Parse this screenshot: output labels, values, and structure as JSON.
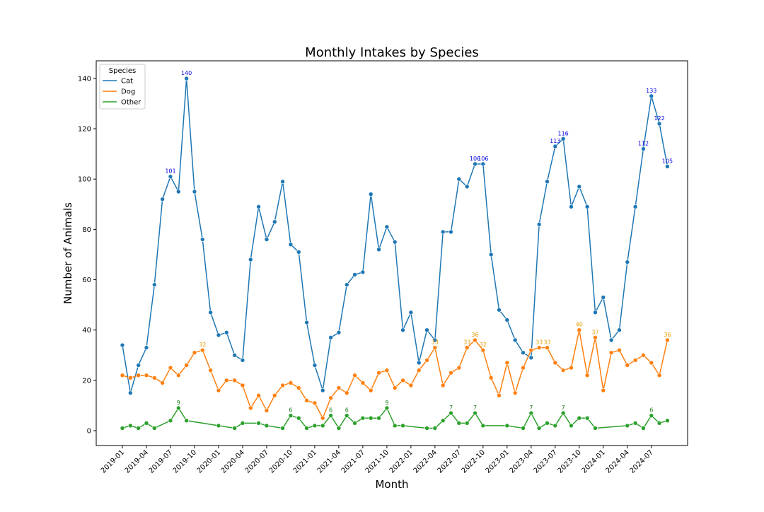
{
  "chart_data": {
    "type": "line",
    "title": "Monthly Intakes by Species",
    "x_label": "Month",
    "y_label": "Number of Animals",
    "legend_title": "Species",
    "legend": "upper left",
    "categories": [
      "2019-01",
      null,
      null,
      "2019-04",
      null,
      null,
      "2019-07",
      null,
      null,
      "2019-10",
      null,
      null,
      "2020-01",
      null,
      null,
      "2020-04",
      null,
      null,
      "2020-07",
      null,
      null,
      "2020-10",
      null,
      null,
      "2021-01",
      null,
      null,
      "2021-04",
      null,
      null,
      "2021-07",
      null,
      null,
      "2021-10",
      null,
      null,
      "2022-01",
      null,
      null,
      "2022-04",
      null,
      null,
      "2022-07",
      null,
      null,
      "2022-10",
      null,
      null,
      "2023-01",
      null,
      null,
      "2023-04",
      null,
      null,
      "2023-07",
      null,
      null,
      "2023-10",
      null,
      null,
      "2024-01",
      null,
      null,
      "2024-04",
      null,
      null,
      "2024-07",
      null,
      null
    ],
    "ylim": [
      -5.9,
      147
    ],
    "yticks": [
      0,
      20,
      40,
      60,
      80,
      100,
      120,
      140
    ],
    "series": [
      {
        "name": "Cat",
        "color": "#1f77b4",
        "label_color": "#0000dd",
        "values": [
          34,
          15,
          26,
          33,
          58,
          92,
          101,
          95,
          140,
          95,
          76,
          47,
          38,
          39,
          30,
          28,
          68,
          89,
          76,
          83,
          99,
          74,
          71,
          43,
          26,
          16,
          37,
          39,
          58,
          62,
          63,
          94,
          72,
          81,
          75,
          40,
          47,
          27,
          40,
          36,
          79,
          79,
          100,
          97,
          106,
          106,
          70,
          48,
          44,
          36,
          31,
          29,
          82,
          99,
          113,
          116,
          89,
          97,
          89,
          47,
          53,
          36,
          40,
          67,
          89,
          112,
          133,
          122,
          105
        ],
        "value_labels": [
          null,
          null,
          null,
          null,
          null,
          null,
          "101",
          null,
          "140",
          null,
          null,
          null,
          null,
          null,
          null,
          null,
          null,
          null,
          null,
          null,
          null,
          null,
          null,
          null,
          null,
          null,
          null,
          null,
          null,
          null,
          null,
          null,
          null,
          null,
          null,
          null,
          null,
          null,
          null,
          null,
          null,
          null,
          null,
          null,
          "106",
          "106",
          null,
          null,
          null,
          null,
          null,
          null,
          null,
          null,
          "113",
          "116",
          null,
          null,
          null,
          null,
          null,
          null,
          null,
          null,
          null,
          "112",
          "133",
          "122",
          "105"
        ]
      },
      {
        "name": "Dog",
        "color": "#ff7f0e",
        "label_color": "#e69a00",
        "values": [
          22,
          21,
          22,
          22,
          21,
          19,
          25,
          22,
          26,
          31,
          32,
          24,
          16,
          20,
          20,
          18,
          9,
          14,
          8,
          14,
          18,
          19,
          17,
          12,
          11,
          5,
          13,
          17,
          15,
          22,
          19,
          16,
          23,
          24,
          17,
          20,
          18,
          24,
          28,
          33,
          18,
          23,
          25,
          33,
          36,
          32,
          21,
          14,
          27,
          15,
          25,
          32,
          33,
          33,
          27,
          24,
          25,
          40,
          22,
          37,
          16,
          31,
          32,
          26,
          28,
          30,
          27,
          22,
          36
        ],
        "value_labels": [
          null,
          null,
          null,
          null,
          null,
          null,
          null,
          null,
          null,
          null,
          "32",
          null,
          null,
          null,
          null,
          null,
          null,
          null,
          null,
          null,
          null,
          null,
          null,
          null,
          null,
          null,
          null,
          null,
          null,
          null,
          null,
          null,
          null,
          null,
          null,
          null,
          null,
          null,
          null,
          "33",
          null,
          null,
          null,
          "33",
          "36",
          "32",
          null,
          null,
          null,
          null,
          null,
          null,
          "33",
          "33",
          null,
          null,
          null,
          "40",
          null,
          "37",
          null,
          null,
          null,
          null,
          null,
          null,
          null,
          null,
          "36"
        ]
      },
      {
        "name": "Other",
        "color": "#2ca02c",
        "label_color": "#1a7a1a",
        "values": [
          1,
          2,
          1,
          3,
          1,
          null,
          4,
          9,
          4,
          null,
          null,
          null,
          2,
          null,
          1,
          3,
          null,
          3,
          2,
          null,
          1,
          6,
          5,
          1,
          2,
          2,
          6,
          1,
          6,
          3,
          5,
          5,
          5,
          9,
          2,
          2,
          null,
          null,
          1,
          1,
          4,
          7,
          3,
          3,
          7,
          2,
          null,
          null,
          2,
          null,
          1,
          7,
          1,
          3,
          2,
          7,
          2,
          5,
          5,
          1,
          null,
          null,
          null,
          2,
          3,
          1,
          6,
          3,
          4
        ],
        "value_labels": [
          null,
          null,
          null,
          null,
          null,
          null,
          null,
          "9",
          null,
          null,
          null,
          null,
          null,
          null,
          null,
          null,
          null,
          null,
          null,
          null,
          null,
          "6",
          null,
          null,
          null,
          null,
          "6",
          null,
          "6",
          null,
          null,
          null,
          null,
          "9",
          null,
          null,
          null,
          null,
          null,
          null,
          null,
          "7",
          null,
          null,
          "7",
          null,
          null,
          null,
          null,
          null,
          null,
          "7",
          null,
          null,
          null,
          "7",
          null,
          null,
          null,
          null,
          null,
          null,
          null,
          null,
          null,
          null,
          "6",
          null,
          null
        ]
      }
    ]
  }
}
